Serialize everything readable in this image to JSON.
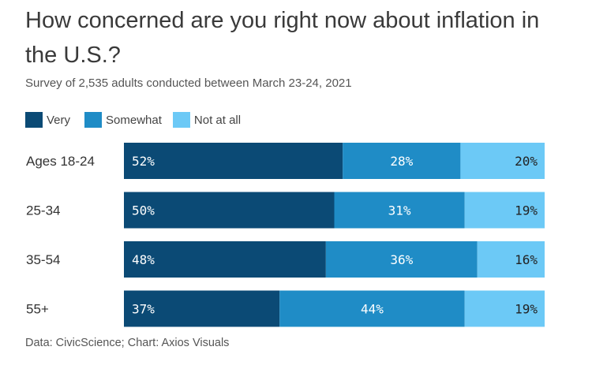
{
  "title": "How concerned are you right now about inflation in the U.S.?",
  "subtitle": "Survey of 2,535 adults conducted between March 23-24, 2021",
  "source": "Data: CivicScience; Chart: Axios Visuals",
  "colors": {
    "Very": "#0b4a75",
    "Somewhat": "#1f8cc6",
    "Not at all": "#6cc9f6",
    "label_light": "#ffffff",
    "label_dark": "#222222"
  },
  "legend": [
    {
      "name": "Very"
    },
    {
      "name": "Somewhat"
    },
    {
      "name": "Not at all"
    }
  ],
  "chart_data": {
    "type": "bar",
    "orientation": "horizontal",
    "stacked": true,
    "title": "How concerned are you right now about inflation in the U.S.?",
    "subtitle": "Survey of 2,535 adults conducted between March 23-24, 2021",
    "categories": [
      "Ages 18-24",
      "25-34",
      "35-54",
      "55+"
    ],
    "series": [
      {
        "name": "Very",
        "values": [
          52,
          50,
          48,
          37
        ]
      },
      {
        "name": "Somewhat",
        "values": [
          28,
          31,
          36,
          44
        ]
      },
      {
        "name": "Not at all",
        "values": [
          20,
          19,
          16,
          19
        ]
      }
    ],
    "unit": "%",
    "grid": false,
    "legend_position": "top-left"
  }
}
